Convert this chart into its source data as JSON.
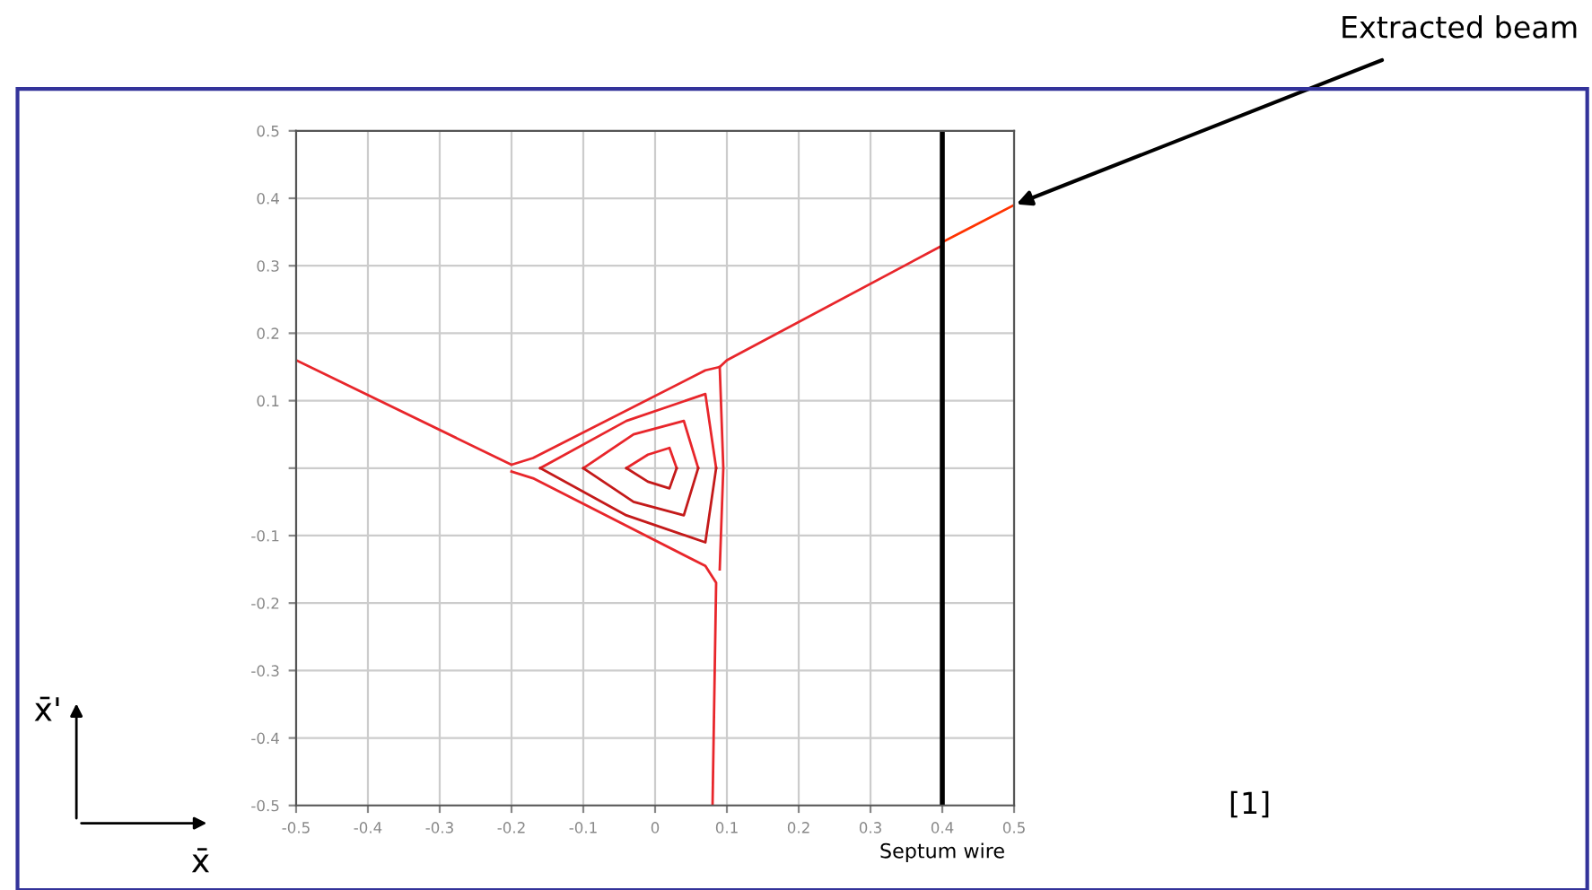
{
  "chart_data": {
    "type": "line",
    "xlim": [
      -0.5,
      0.5
    ],
    "ylim": [
      -0.5,
      0.5
    ],
    "xticks": [
      -0.5,
      -0.4,
      -0.3,
      -0.2,
      -0.1,
      0,
      0.1,
      0.2,
      0.3,
      0.4,
      0.5
    ],
    "yticks": [
      -0.5,
      -0.4,
      -0.3,
      -0.2,
      -0.1,
      {
        "value": 0,
        "label": null
      },
      0.1,
      0.2,
      0.3,
      0.4,
      0.5
    ],
    "grid": true,
    "marker": "none",
    "line_style": "solid",
    "series": [
      {
        "color": "#e8262b",
        "x": [
          -0.5,
          -0.2,
          -0.17,
          0.07,
          0.09,
          0.1,
          0.4
        ],
        "values": [
          0.16,
          0.005,
          0.015,
          0.145,
          0.15,
          0.16,
          0.33
        ]
      },
      {
        "color": "#e8262b",
        "x": [
          -0.2,
          -0.17,
          0.07,
          0.085,
          0.08
        ],
        "values": [
          -0.005,
          -0.015,
          -0.145,
          -0.17,
          -0.5
        ]
      },
      {
        "color": "#e8262b",
        "x": [
          0.09,
          0.095,
          0.09
        ],
        "values": [
          0.15,
          0,
          -0.15
        ]
      },
      {
        "color": "#e8262b",
        "x": [
          -0.16,
          -0.04,
          0.07,
          0.085
        ],
        "values": [
          0,
          0.07,
          0.11,
          0
        ]
      },
      {
        "color": "#c41a1a",
        "x": [
          -0.16,
          -0.04,
          0.07,
          0.085
        ],
        "values": [
          0,
          -0.07,
          -0.11,
          0
        ]
      },
      {
        "color": "#e8262b",
        "x": [
          -0.1,
          -0.03,
          0.04,
          0.06
        ],
        "values": [
          0,
          0.05,
          0.07,
          0
        ]
      },
      {
        "color": "#c41a1a",
        "x": [
          -0.1,
          -0.03,
          0.04,
          0.06
        ],
        "values": [
          0,
          -0.05,
          -0.07,
          0
        ]
      },
      {
        "color": "#e8262b",
        "x": [
          -0.04,
          -0.01,
          0.02,
          0.03
        ],
        "values": [
          0,
          0.02,
          0.03,
          0
        ]
      },
      {
        "color": "#c41a1a",
        "x": [
          -0.04,
          -0.01,
          0.02,
          0.03
        ],
        "values": [
          0,
          -0.02,
          -0.03,
          0
        ]
      },
      {
        "color": "#ff3300",
        "x": [
          0.4,
          0.5
        ],
        "values": [
          0.335,
          0.39
        ]
      }
    ],
    "ref_lines": [
      {
        "axis": "x",
        "value": 0.4,
        "label": "Septum wire",
        "color": "#000000"
      }
    ],
    "annotations": [
      {
        "text": "Extracted beam",
        "x": 0.5,
        "y": 0.39
      },
      "[1]",
      "x̄",
      "x̄'"
    ]
  }
}
